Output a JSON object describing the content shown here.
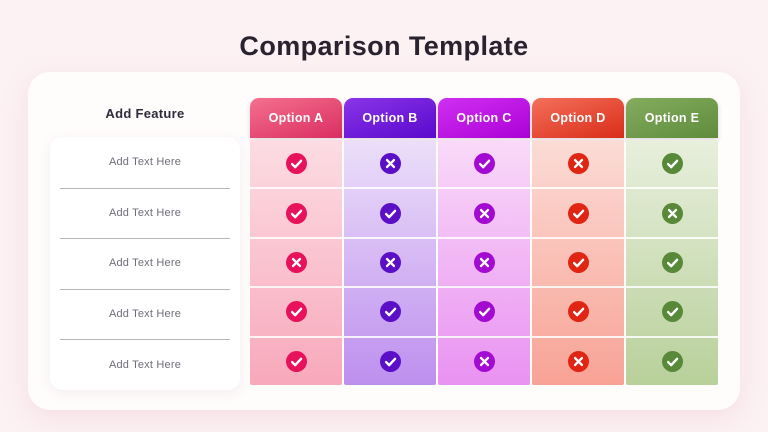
{
  "page": {
    "title": "Comparison Template",
    "background_color": "#fcf1f3",
    "title_color": "#29222f"
  },
  "features": {
    "header": "Add Feature",
    "rows": [
      "Add Text Here",
      "Add Text Here",
      "Add Text Here",
      "Add Text Here",
      "Add Text Here"
    ]
  },
  "table": {
    "columns": [
      {
        "label": "Option A",
        "header_gradient": [
          "#f4708f",
          "#da2e60"
        ],
        "body_gradient": [
          "#fcdce3",
          "#f8a9bb"
        ],
        "icon_color": "#e8115c"
      },
      {
        "label": "Option B",
        "header_gradient": [
          "#8a35e8",
          "#5a08cd"
        ],
        "body_gradient": [
          "#ecdff9",
          "#bd8fee"
        ],
        "icon_color": "#5b0fc6"
      },
      {
        "label": "Option C",
        "header_gradient": [
          "#d02ff2",
          "#ab01d6"
        ],
        "body_gradient": [
          "#f9daf8",
          "#e992f2"
        ],
        "icon_color": "#a30bd2"
      },
      {
        "label": "Option D",
        "header_gradient": [
          "#f4705b",
          "#d92d18"
        ],
        "body_gradient": [
          "#fbdcd6",
          "#f8a295"
        ],
        "icon_color": "#e02512"
      },
      {
        "label": "Option E",
        "header_gradient": [
          "#85ac5f",
          "#5e8c3c"
        ],
        "body_gradient": [
          "#e8efdd",
          "#b8d09a"
        ],
        "icon_color": "#588939"
      }
    ],
    "matrix": [
      [
        "check",
        "cross",
        "check",
        "cross",
        "check"
      ],
      [
        "check",
        "check",
        "cross",
        "check",
        "cross"
      ],
      [
        "cross",
        "cross",
        "cross",
        "check",
        "check"
      ],
      [
        "check",
        "check",
        "check",
        "check",
        "check"
      ],
      [
        "check",
        "check",
        "cross",
        "cross",
        "check"
      ]
    ]
  }
}
